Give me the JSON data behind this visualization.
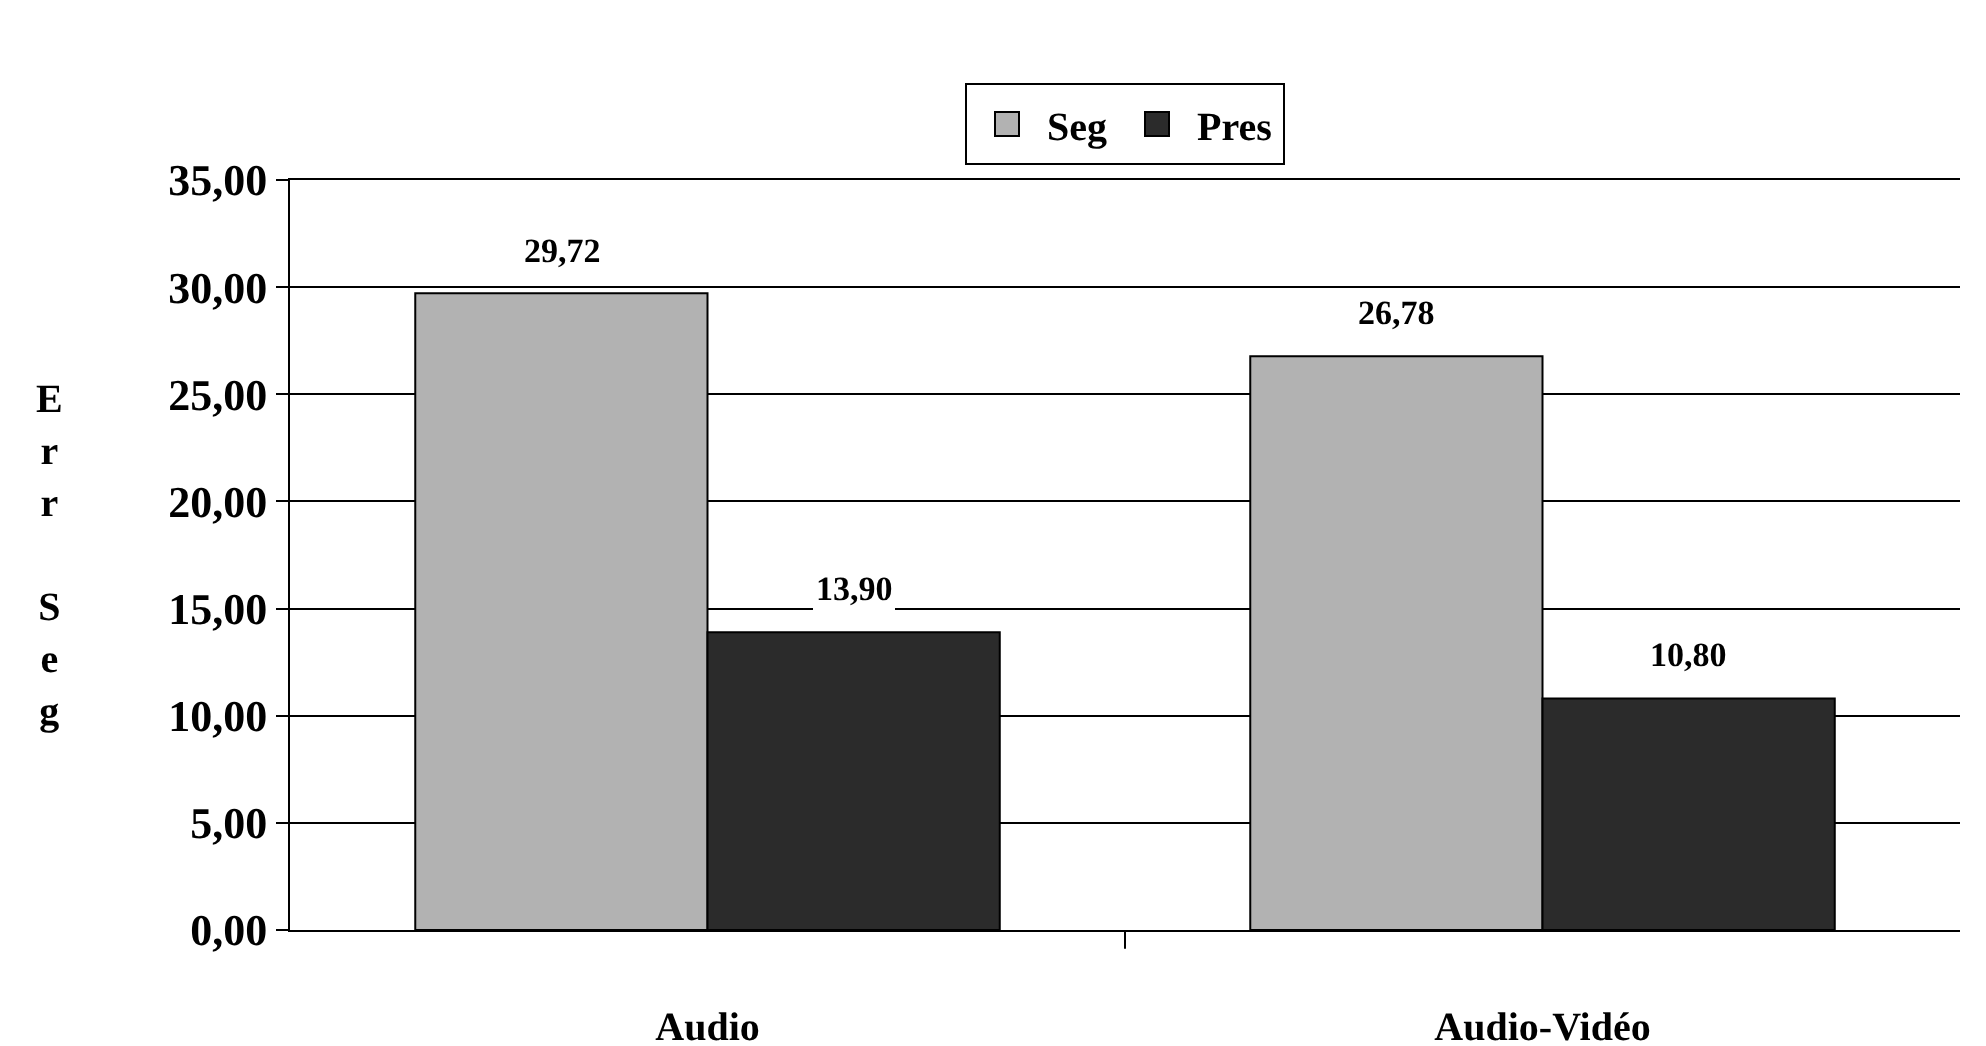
{
  "chart_data": {
    "type": "bar",
    "ylabel": "Err Seg",
    "categories": [
      "Audio",
      "Audio-Vidéo"
    ],
    "series": [
      {
        "name": "Seg",
        "color": "#b2b2b2",
        "values": [
          29.72,
          26.78
        ],
        "value_labels": [
          "29,72",
          "26,78"
        ]
      },
      {
        "name": "Pres",
        "color": "#2b2b2b",
        "values": [
          13.9,
          10.8
        ],
        "value_labels": [
          "13,90",
          "10,80"
        ]
      }
    ],
    "ylim": [
      0,
      35
    ],
    "yticks": [
      {
        "value": 0,
        "label": "0,00"
      },
      {
        "value": 5,
        "label": "5,00"
      },
      {
        "value": 10,
        "label": "10,00"
      },
      {
        "value": 15,
        "label": "15,00"
      },
      {
        "value": 20,
        "label": "20,00"
      },
      {
        "value": 25,
        "label": "25,00"
      },
      {
        "value": 30,
        "label": "30,00"
      },
      {
        "value": 35,
        "label": "35,00"
      }
    ],
    "grid": "y",
    "legend": "top"
  }
}
